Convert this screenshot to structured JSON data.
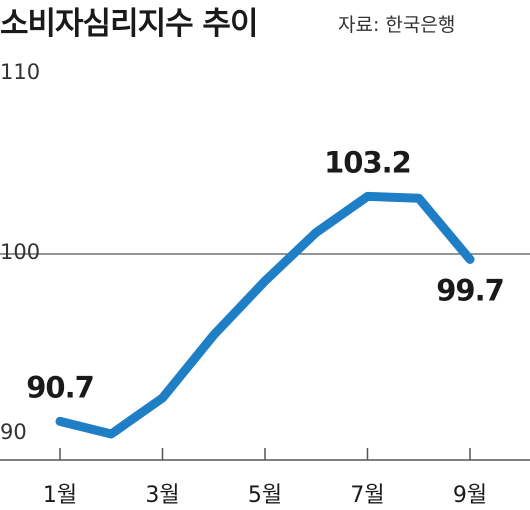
{
  "chart_data": {
    "type": "line",
    "title": "소비자심리지수 추이",
    "source": "자료: 한국은행",
    "x": [
      1,
      2,
      3,
      4,
      5,
      6,
      7,
      8,
      9
    ],
    "series": [
      {
        "values": [
          90.7,
          90.0,
          92.0,
          95.5,
          98.5,
          101.2,
          103.2,
          103.1,
          99.7
        ]
      }
    ],
    "x_tick_labels": [
      "1월",
      "3월",
      "5월",
      "7월",
      "9월"
    ],
    "x_tick_positions": [
      1,
      3,
      5,
      7,
      9
    ],
    "y_ticks": [
      "110",
      "100",
      "90"
    ],
    "y_tick_values": [
      110,
      100,
      90
    ],
    "ylim": [
      88,
      112
    ],
    "reference_line": 100,
    "data_labels": [
      {
        "x": 1,
        "text": "90.7"
      },
      {
        "x": 7,
        "text": "103.2"
      },
      {
        "x": 9,
        "text": "99.7"
      }
    ],
    "line_color": "#1e7fc6",
    "grid": false,
    "legend": "none"
  }
}
